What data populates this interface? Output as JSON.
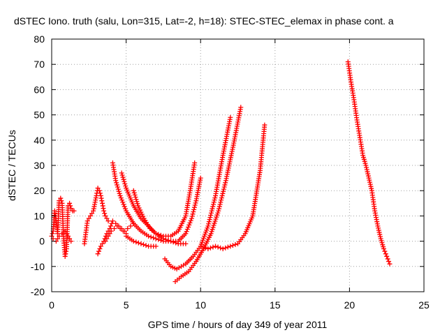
{
  "chart_data": {
    "type": "scatter",
    "title": "dSTEC Iono. truth (salu, Lon=315, Lat=-2, h=18): STEC-STEC_elemax in phase cont. a",
    "xlabel": "GPS time / hours of day 349 of year 2011",
    "ylabel": "dSTEC  / TECUs",
    "xlim": [
      0,
      25
    ],
    "ylim": [
      -20,
      80
    ],
    "xticks": [
      0,
      5,
      10,
      15,
      20,
      25
    ],
    "yticks": [
      -20,
      -10,
      0,
      10,
      20,
      30,
      40,
      50,
      60,
      70,
      80
    ],
    "xtick_labels": [
      "0",
      "5",
      "10",
      "15",
      "20",
      "25"
    ],
    "ytick_labels": [
      "-20",
      "-10",
      "0",
      "10",
      "20",
      "30",
      "40",
      "50",
      "60",
      "70",
      "80"
    ],
    "grid": true,
    "marker": "+",
    "color": "#ff0000",
    "series": [
      {
        "x": [
          0.0,
          0.1,
          0.2,
          0.3,
          0.4,
          0.5,
          0.6,
          0.7,
          0.8,
          0.9,
          1.0,
          1.1,
          1.2,
          1.3,
          1.4,
          1.5
        ],
        "y": [
          2,
          4,
          12,
          8,
          3,
          16,
          17,
          15,
          1,
          -6,
          -3,
          14,
          15,
          13,
          12,
          12
        ]
      },
      {
        "x": [
          0.1,
          0.3,
          0.5,
          0.7,
          0.9,
          1.1,
          1.3
        ],
        "y": [
          1,
          0,
          2,
          3,
          4,
          2,
          0
        ]
      },
      {
        "x": [
          2.2,
          2.4,
          2.6,
          2.8,
          3.0,
          3.1,
          3.2,
          3.3,
          3.4,
          3.5,
          3.6,
          3.8
        ],
        "y": [
          -1,
          8,
          10,
          12,
          18,
          21,
          20,
          18,
          15,
          12,
          10,
          8
        ]
      },
      {
        "x": [
          3.1,
          3.3,
          3.5,
          3.7,
          3.9,
          4.1,
          4.3,
          4.5,
          4.7,
          4.9,
          5.1,
          5.3,
          5.5
        ],
        "y": [
          -5,
          -2,
          0,
          3,
          5,
          8,
          7,
          6,
          5,
          4,
          5,
          6,
          7
        ]
      },
      {
        "x": [
          3.6,
          3.8,
          4.0,
          4.2,
          4.4,
          4.6,
          4.8,
          5.0
        ],
        "y": [
          0,
          2,
          4,
          5,
          6,
          5,
          4,
          3
        ]
      },
      {
        "x": [
          4.1,
          4.3,
          4.6,
          5.0,
          5.5,
          6.0,
          6.5,
          7.0,
          7.5,
          8.0,
          8.5,
          9.0
        ],
        "y": [
          31,
          24,
          18,
          12,
          7,
          4,
          2,
          1,
          0,
          0,
          -1,
          -1
        ]
      },
      {
        "x": [
          4.7,
          5.0,
          5.5,
          6.0,
          6.5,
          7.0,
          7.5,
          8.0,
          8.5,
          9.0,
          9.3,
          9.6
        ],
        "y": [
          27,
          21,
          14,
          9,
          6,
          3,
          2,
          2,
          4,
          10,
          20,
          31
        ]
      },
      {
        "x": [
          5.5,
          5.8,
          6.2,
          6.6,
          7.0,
          7.5,
          8.0,
          8.5,
          9.0,
          9.4,
          9.7,
          10.0
        ],
        "y": [
          20,
          14,
          9,
          5,
          3,
          1,
          0,
          0,
          3,
          9,
          16,
          25
        ]
      },
      {
        "x": [
          5.0,
          5.5,
          6.0,
          6.5,
          7.0
        ],
        "y": [
          2,
          0,
          -1,
          -2,
          -2
        ]
      },
      {
        "x": [
          7.6,
          8.0,
          8.4,
          9.0,
          9.5,
          10.0,
          10.5,
          11.0,
          11.5,
          12.0
        ],
        "y": [
          -7,
          -10,
          -11,
          -9,
          -6,
          -2,
          6,
          18,
          34,
          49
        ]
      },
      {
        "x": [
          8.3,
          8.7,
          9.2,
          9.7,
          10.2,
          10.7,
          11.2,
          11.7,
          12.2,
          12.7
        ],
        "y": [
          -16,
          -14,
          -12,
          -8,
          -3,
          3,
          12,
          24,
          38,
          53
        ]
      },
      {
        "x": [
          10.0,
          10.5,
          11.0,
          11.5,
          12.0,
          12.5,
          13.0,
          13.5,
          14.0,
          14.3
        ],
        "y": [
          -2,
          -3,
          -2,
          -3,
          -2,
          -1,
          3,
          10,
          28,
          46
        ]
      },
      {
        "x": [
          19.9,
          20.1,
          20.3,
          20.5,
          20.7,
          20.9,
          21.1,
          21.3,
          21.5,
          21.7,
          21.9,
          22.1,
          22.3,
          22.5,
          22.7
        ],
        "y": [
          71,
          63,
          56,
          48,
          41,
          34,
          30,
          25,
          20,
          12,
          6,
          1,
          -3,
          -6,
          -9
        ]
      }
    ]
  }
}
